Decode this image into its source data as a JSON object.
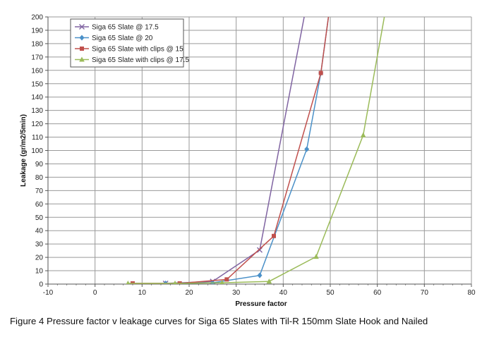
{
  "chart_data": {
    "type": "line",
    "xlabel": "Pressure factor",
    "ylabel": "Leakage (gr/m2/5min)",
    "xlim": [
      -10,
      80
    ],
    "ylim": [
      0,
      200
    ],
    "xticks": [
      -10,
      0,
      10,
      20,
      30,
      40,
      50,
      60,
      70,
      80
    ],
    "yticks": [
      0,
      10,
      20,
      30,
      40,
      50,
      60,
      70,
      80,
      90,
      100,
      110,
      120,
      130,
      140,
      150,
      160,
      170,
      180,
      190,
      200
    ],
    "grid": true,
    "legend_position": "top-left",
    "series": [
      {
        "name": "Siga 65 Slate @ 17.5",
        "color": "#8064a2",
        "marker": "x",
        "points": [
          [
            15,
            0.5
          ],
          [
            25,
            2
          ],
          [
            35,
            25.5
          ],
          [
            45,
            210
          ]
        ]
      },
      {
        "name": "Siga 65 Slate @ 20",
        "color": "#4a90c8",
        "marker": "diamond",
        "points": [
          [
            15,
            0.5
          ],
          [
            25,
            1
          ],
          [
            35,
            6.5
          ],
          [
            45,
            101
          ],
          [
            48,
            158
          ],
          [
            50,
            210
          ]
        ]
      },
      {
        "name": "Siga 65 Slate with clips @ 15",
        "color": "#c0504d",
        "marker": "square",
        "points": [
          [
            8,
            0.5
          ],
          [
            18,
            0.5
          ],
          [
            28,
            3.5
          ],
          [
            38,
            36
          ],
          [
            48,
            158
          ],
          [
            50,
            210
          ]
        ]
      },
      {
        "name": "Siga 65 Slate with clips @ 17.5",
        "color": "#9bbb59",
        "marker": "triangle",
        "points": [
          [
            7,
            0.5
          ],
          [
            17,
            0.5
          ],
          [
            27,
            1
          ],
          [
            37,
            2
          ],
          [
            47,
            20.5
          ],
          [
            57,
            111.5
          ],
          [
            62,
            210
          ]
        ]
      }
    ]
  },
  "caption": "Figure 4  Pressure factor v leakage curves for Siga 65 Slates with Til-R 150mm Slate Hook and Nailed"
}
